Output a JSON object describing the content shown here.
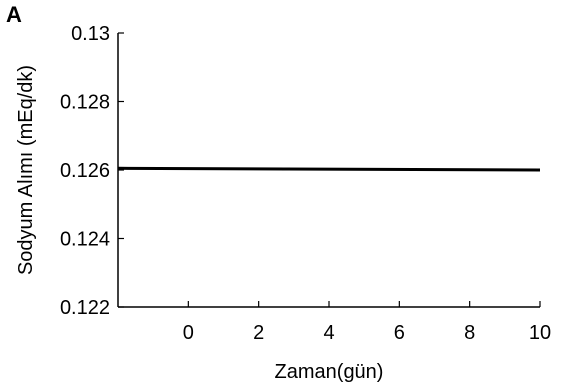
{
  "panel_label": "A",
  "chart_data": {
    "type": "line",
    "title": "",
    "xlabel": "Zaman(gün)",
    "ylabel": "Sodyum Alımı (mEq/dk)",
    "xlim": [
      -2,
      10
    ],
    "ylim": [
      0.122,
      0.13
    ],
    "x_ticks": [
      0,
      2,
      4,
      6,
      8,
      10
    ],
    "x_tick_labels": [
      "0",
      "2",
      "4",
      "6",
      "8",
      "10"
    ],
    "y_ticks": [
      0.122,
      0.124,
      0.126,
      0.128,
      0.13
    ],
    "y_tick_labels": [
      "0.122",
      "0.124",
      "0.126",
      "0.128",
      "0.13"
    ],
    "grid": false,
    "legend": "none",
    "series": [
      {
        "color": "#000000",
        "x": [
          -2,
          10
        ],
        "y": [
          0.12605,
          0.126
        ]
      }
    ]
  }
}
